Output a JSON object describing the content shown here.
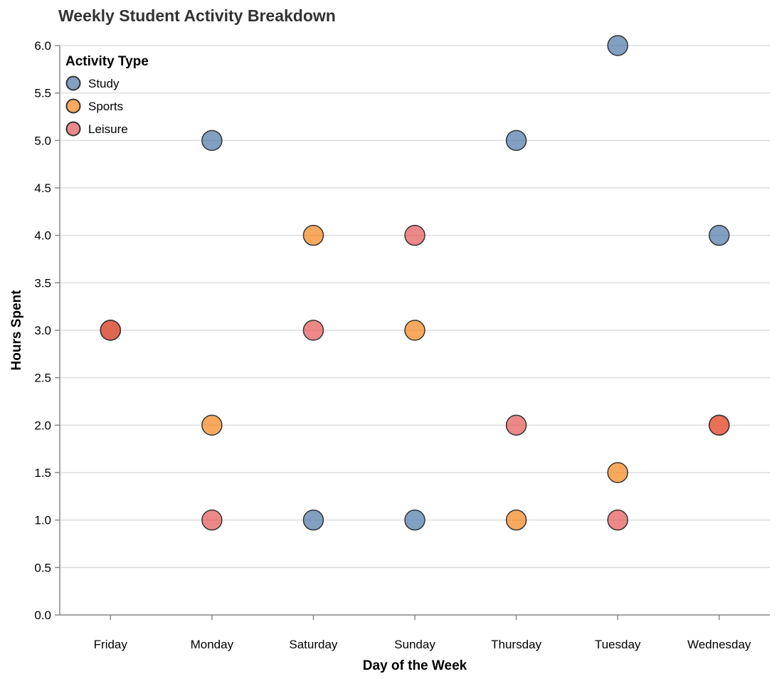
{
  "chart_data": {
    "type": "scatter",
    "title": "Weekly Student Activity Breakdown",
    "xlabel": "Day of the Week",
    "ylabel": "Hours Spent",
    "categories": [
      "Friday",
      "Monday",
      "Saturday",
      "Sunday",
      "Thursday",
      "Tuesday",
      "Wednesday"
    ],
    "ylim": [
      0,
      6
    ],
    "yticks": [
      "0.0",
      "0.5",
      "1.0",
      "1.5",
      "2.0",
      "2.5",
      "3.0",
      "3.5",
      "4.0",
      "4.5",
      "5.0",
      "5.5",
      "6.0"
    ],
    "grid": true,
    "legend": {
      "title": "Activity Type",
      "placement": "top-left"
    },
    "series": [
      {
        "name": "Study",
        "color": "#4c78a8",
        "points": [
          {
            "x": "Friday",
            "y": 3
          },
          {
            "x": "Monday",
            "y": 5
          },
          {
            "x": "Saturday",
            "y": 1
          },
          {
            "x": "Sunday",
            "y": 1
          },
          {
            "x": "Thursday",
            "y": 5
          },
          {
            "x": "Tuesday",
            "y": 6
          },
          {
            "x": "Wednesday",
            "y": 4
          }
        ]
      },
      {
        "name": "Sports",
        "color": "#f58518",
        "points": [
          {
            "x": "Friday",
            "y": 3
          },
          {
            "x": "Monday",
            "y": 2
          },
          {
            "x": "Saturday",
            "y": 4
          },
          {
            "x": "Sunday",
            "y": 3
          },
          {
            "x": "Thursday",
            "y": 1
          },
          {
            "x": "Tuesday",
            "y": 1.5
          },
          {
            "x": "Wednesday",
            "y": 2
          }
        ]
      },
      {
        "name": "Leisure",
        "color": "#e45756",
        "points": [
          {
            "x": "Friday",
            "y": 3
          },
          {
            "x": "Monday",
            "y": 1
          },
          {
            "x": "Saturday",
            "y": 3
          },
          {
            "x": "Sunday",
            "y": 4
          },
          {
            "x": "Thursday",
            "y": 2
          },
          {
            "x": "Tuesday",
            "y": 1
          },
          {
            "x": "Wednesday",
            "y": 2
          }
        ]
      }
    ]
  }
}
